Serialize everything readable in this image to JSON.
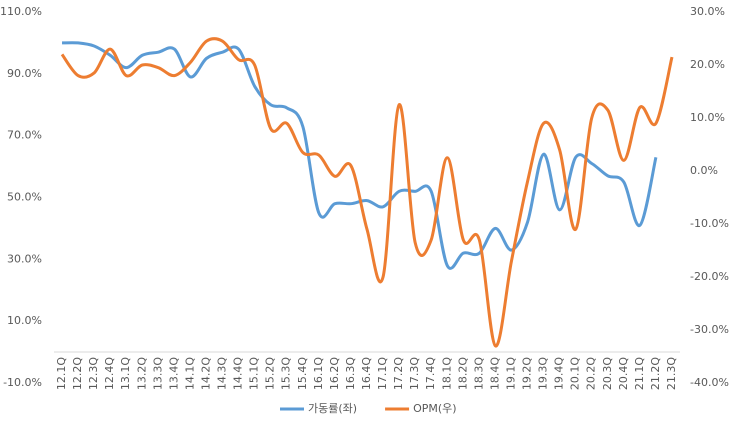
{
  "chart_data": {
    "type": "line",
    "categories": [
      "12.1Q",
      "12.2Q",
      "12.3Q",
      "12.4Q",
      "13.1Q",
      "13.2Q",
      "13.3Q",
      "13.4Q",
      "14.1Q",
      "14.2Q",
      "14.3Q",
      "14.4Q",
      "15.1Q",
      "15.2Q",
      "15.3Q",
      "15.4Q",
      "16.1Q",
      "16.2Q",
      "16.3Q",
      "16.4Q",
      "17.1Q",
      "17.2Q",
      "17.3Q",
      "17.4Q",
      "18.1Q",
      "18.2Q",
      "18.3Q",
      "18.4Q",
      "19.1Q",
      "19.2Q",
      "19.3Q",
      "19.4Q",
      "20.1Q",
      "20.2Q",
      "20.3Q",
      "20.4Q",
      "21.1Q",
      "21.2Q",
      "21.3Q"
    ],
    "series": [
      {
        "name": "가동률(좌)",
        "color": "#5b9bd5",
        "values": [
          100,
          100,
          99,
          96,
          92,
          96,
          97,
          98,
          89,
          95,
          97,
          98,
          86,
          80,
          79,
          73,
          45,
          48,
          48,
          49,
          47,
          52,
          52,
          52,
          28,
          32,
          32,
          40,
          33,
          42,
          64,
          46,
          63,
          61,
          57,
          55,
          41,
          63,
          null
        ]
      },
      {
        "name": "OPM(우)",
        "color": "#ed7d31",
        "axis": "y2",
        "values": [
          22,
          18,
          18.5,
          23,
          18,
          20,
          19.5,
          18,
          20.5,
          24.5,
          24.5,
          21,
          20,
          8,
          9,
          3.5,
          3,
          -1,
          1,
          -11,
          -20,
          12.5,
          -13.5,
          -13,
          2.5,
          -13,
          -13,
          -33,
          -17,
          -2,
          9,
          4,
          -11,
          10,
          11.5,
          2,
          12,
          9,
          21.5
        ]
      }
    ],
    "ylim": [
      -10,
      110
    ],
    "yticks": [
      {
        "value": -10,
        "label": "-10.0%"
      },
      {
        "value": 10,
        "label": "10.0%"
      },
      {
        "value": 30,
        "label": "30.0%"
      },
      {
        "value": 50,
        "label": "50.0%"
      },
      {
        "value": 70,
        "label": "70.0%"
      },
      {
        "value": 90,
        "label": "90.0%"
      },
      {
        "value": 110,
        "label": "110.0%"
      }
    ],
    "y2lim": [
      -40,
      30
    ],
    "y2ticks": [
      {
        "value": -40,
        "label": "-40.0%"
      },
      {
        "value": -30,
        "label": "-30.0%"
      },
      {
        "value": -20,
        "label": "-20.0%"
      },
      {
        "value": -10,
        "label": "-10.0%"
      },
      {
        "value": 0,
        "label": "0.0%"
      },
      {
        "value": 10,
        "label": "10.0%"
      },
      {
        "value": 20,
        "label": "20.0%"
      },
      {
        "value": 30,
        "label": "30.0%"
      }
    ],
    "grid": false,
    "legend": "bottom",
    "smooth": true
  }
}
